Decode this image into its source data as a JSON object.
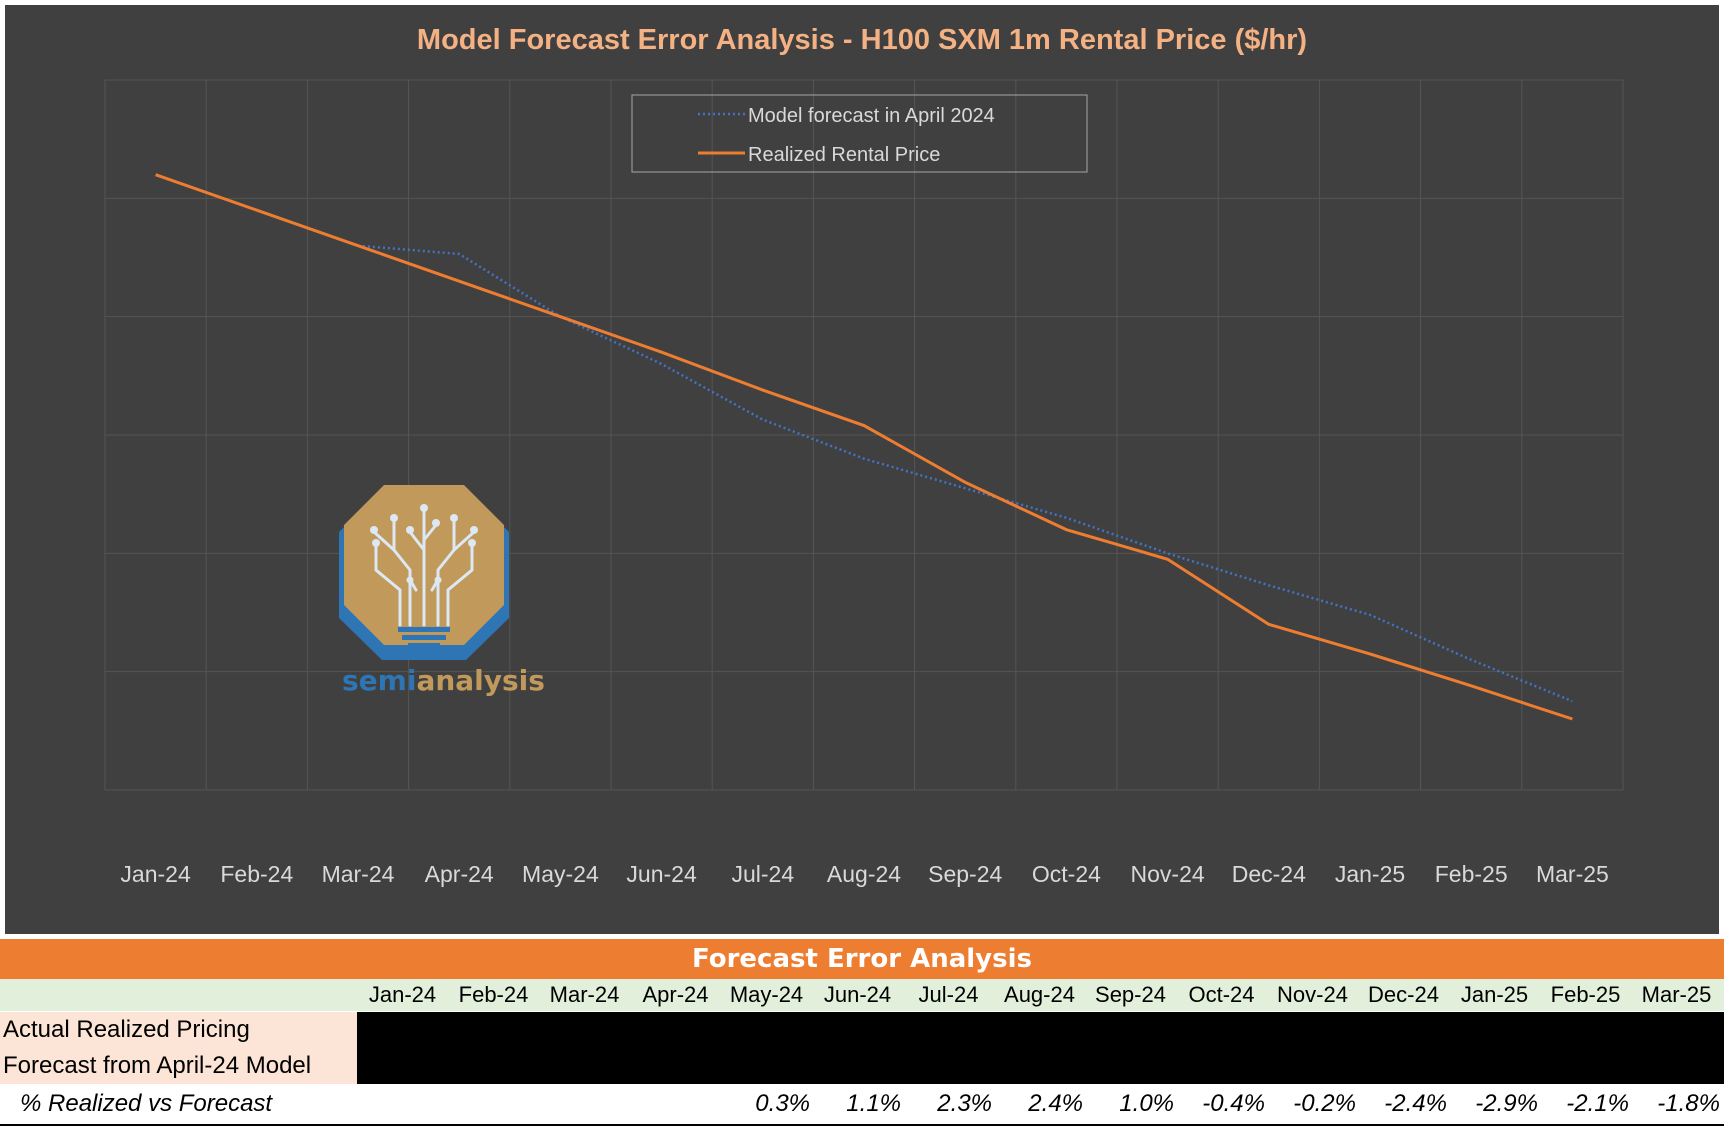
{
  "chart_data": {
    "type": "line",
    "title": "Model Forecast Error Analysis - H100 SXM 1m Rental Price ($/hr)",
    "categories": [
      "Jan-24",
      "Feb-24",
      "Mar-24",
      "Apr-24",
      "May-24",
      "Jun-24",
      "Jul-24",
      "Aug-24",
      "Sep-24",
      "Oct-24",
      "Nov-24",
      "Dec-24",
      "Jan-25",
      "Feb-25",
      "Mar-25"
    ],
    "ylim": [
      0,
      6
    ],
    "yticks_labeled": false,
    "grid": true,
    "legend_position": "top-center",
    "series": [
      {
        "name": "Model forecast in April 2024",
        "style": "dotted",
        "color": "#4472C4",
        "values": [
          null,
          null,
          4.6,
          4.53,
          4.0,
          3.6,
          3.13,
          2.8,
          2.55,
          2.3,
          2.0,
          1.73,
          1.48,
          1.1,
          0.75
        ]
      },
      {
        "name": "Realized Rental Price",
        "style": "solid",
        "color": "#ED7D31",
        "values": [
          5.2,
          4.9,
          4.6,
          4.3,
          4.0,
          3.7,
          3.38,
          3.08,
          2.6,
          2.2,
          1.95,
          1.4,
          1.15,
          0.88,
          0.6
        ]
      }
    ]
  },
  "logo": {
    "text_part1": "semi",
    "text_part2": "analysis"
  },
  "table": {
    "title": "Forecast Error Analysis",
    "months": [
      "Jan-24",
      "Feb-24",
      "Mar-24",
      "Apr-24",
      "May-24",
      "Jun-24",
      "Jul-24",
      "Aug-24",
      "Sep-24",
      "Oct-24",
      "Nov-24",
      "Dec-24",
      "Jan-25",
      "Feb-25",
      "Mar-25"
    ],
    "row_actual_label": "Actual Realized Pricing",
    "row_forecast_label": "Forecast from April-24 Model",
    "row_pct_label": "% Realized vs Forecast",
    "pct_values": [
      "",
      "",
      "",
      "",
      "0.3%",
      "1.1%",
      "2.3%",
      "2.4%",
      "1.0%",
      "-0.4%",
      "-0.2%",
      "-2.4%",
      "-2.9%",
      "-2.1%",
      "-1.8%"
    ]
  },
  "colors": {
    "chart_bg": "#404040",
    "orange": "#ED7D31",
    "blue": "#4472C4",
    "title_color": "#F4B183",
    "axis_text": "#D9D9D9"
  }
}
